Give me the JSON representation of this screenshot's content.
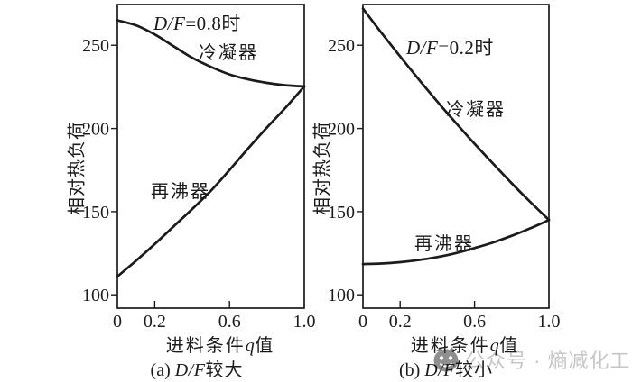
{
  "colors": {
    "ink": "#1b1b1b",
    "background": "#ffffff",
    "watermark_text": "#c6c6c6",
    "watermark_icon": "#8f8f8f"
  },
  "watermark": {
    "icon": "wechat-account-logo",
    "text": "公众号 · 熵减化工"
  },
  "chart_data": [
    {
      "type": "line",
      "panel": "a",
      "title": {
        "df": "D/F",
        "rest": "=0.8时"
      },
      "caption": {
        "index": "(a)",
        "df": "D/F",
        "rest": "较大"
      },
      "xlabel": {
        "pre": "进料条件",
        "var": "q",
        "post": "值"
      },
      "ylabel": "相对热负荷",
      "x": [
        0,
        0.1,
        0.2,
        0.3,
        0.4,
        0.5,
        0.6,
        0.7,
        0.8,
        0.9,
        1.0
      ],
      "series": [
        {
          "name": "冷凝器",
          "key": "condenser",
          "values": [
            265,
            262,
            256.5,
            249.5,
            242.5,
            237,
            232.5,
            229.5,
            227.4,
            226,
            225.3
          ]
        },
        {
          "name": "再沸器",
          "key": "reboiler",
          "values": [
            111,
            120.5,
            130.5,
            141,
            151.5,
            162.5,
            175,
            188,
            200.5,
            212.5,
            225.3
          ]
        }
      ],
      "xlim": [
        0,
        1
      ],
      "ylim": [
        92,
        274.5
      ],
      "xticks": {
        "labeled": [
          0,
          0.2,
          0.6,
          1.0
        ],
        "labels": [
          "0",
          "0.2",
          "0.6",
          "1.0"
        ],
        "inner_marks": [
          0.2,
          0.6
        ]
      },
      "yticks": [
        100,
        150,
        200,
        250
      ],
      "grid": false,
      "legend": "inline-annotations"
    },
    {
      "type": "line",
      "panel": "b",
      "title": {
        "df": "D/F",
        "rest": "=0.2时"
      },
      "caption": {
        "index": "(b)",
        "df": "D/F",
        "rest": "较小"
      },
      "xlabel": {
        "pre": "进料条件",
        "var": "q",
        "post": "值"
      },
      "ylabel": "相对热负荷",
      "x": [
        0,
        0.1,
        0.2,
        0.3,
        0.4,
        0.5,
        0.6,
        0.7,
        0.8,
        0.9,
        1.0
      ],
      "series": [
        {
          "name": "冷凝器",
          "key": "condenser",
          "values": [
            272,
            257.4,
            243.3,
            229.5,
            216.2,
            203.3,
            190.8,
            178.8,
            167,
            155.8,
            145
          ]
        },
        {
          "name": "再沸器",
          "key": "reboiler",
          "values": [
            118.5,
            118.8,
            119.6,
            120.9,
            122.7,
            125.1,
            128.1,
            131.5,
            135.5,
            140,
            145
          ]
        }
      ],
      "xlim": [
        0,
        1
      ],
      "ylim": [
        92,
        274.5
      ],
      "xticks": {
        "labeled": [
          0,
          0.2,
          0.6,
          1.0
        ],
        "labels": [
          "0",
          "0.2",
          "0.6",
          "1.0"
        ],
        "inner_marks": [
          0.2,
          0.6
        ]
      },
      "yticks": [
        100,
        150,
        200,
        250
      ],
      "grid": false,
      "legend": "inline-annotations"
    }
  ]
}
